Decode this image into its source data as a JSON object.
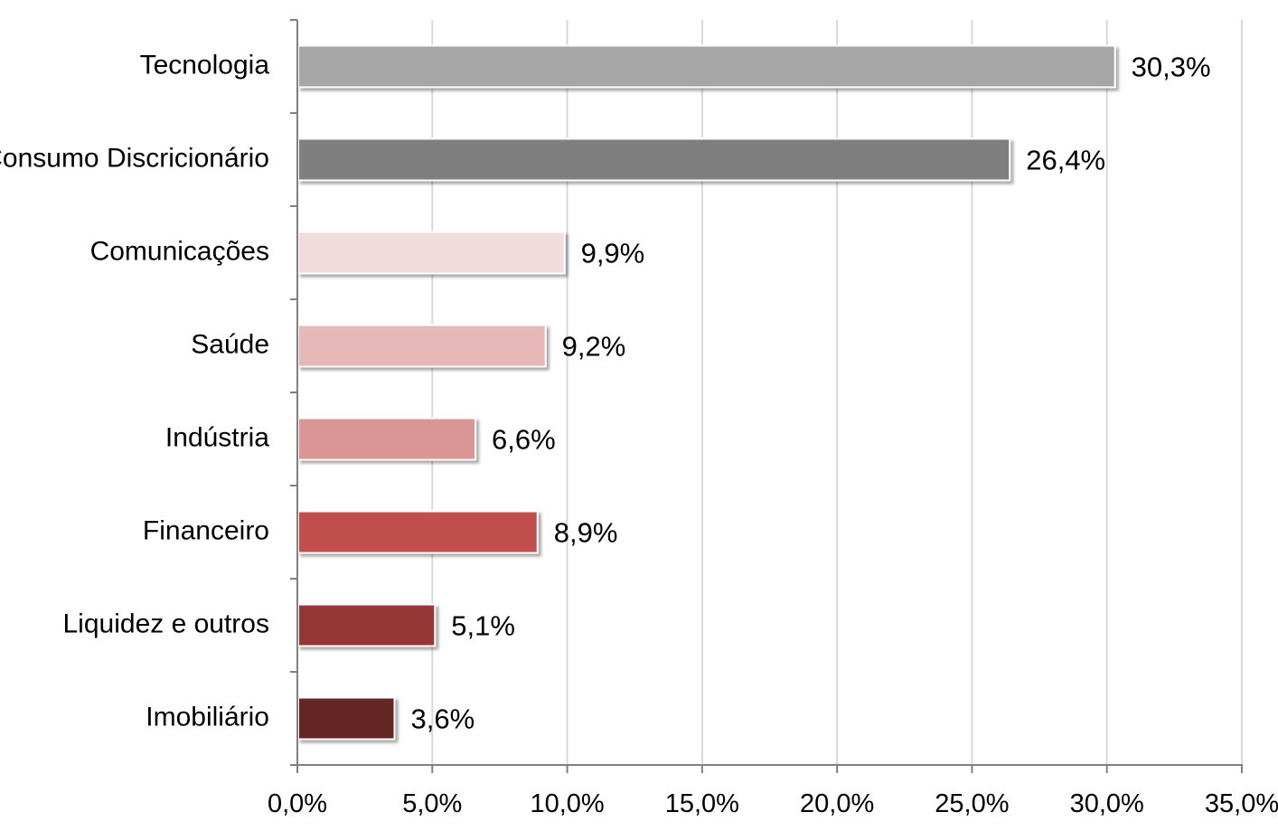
{
  "chart_data": {
    "type": "bar",
    "orientation": "horizontal",
    "categories": [
      "Tecnologia",
      "Consumo Discricionário",
      "Comunicações",
      "Saúde",
      "Indústria",
      "Financeiro",
      "Liquidez e outros",
      "Imobiliário"
    ],
    "values": [
      30.3,
      26.4,
      9.9,
      9.2,
      6.6,
      8.9,
      5.1,
      3.6
    ],
    "value_labels": [
      "30,3%",
      "26,4%",
      "9,9%",
      "9,2%",
      "6,6%",
      "8,9%",
      "5,1%",
      "3,6%"
    ],
    "colors": [
      "#a6a6a6",
      "#7f7f7f",
      "#f2dcdb",
      "#e6b9b8",
      "#d99694",
      "#c0504d",
      "#953735",
      "#632523"
    ],
    "xlim": [
      0,
      35
    ],
    "x_ticks": [
      0,
      5,
      10,
      15,
      20,
      25,
      30,
      35
    ],
    "x_tick_labels": [
      "0,0%",
      "5,0%",
      "10,0%",
      "15,0%",
      "20,0%",
      "25,0%",
      "30,0%",
      "35,0%"
    ],
    "grid": true,
    "legend": "none",
    "title": "",
    "xlabel": "",
    "ylabel": ""
  }
}
